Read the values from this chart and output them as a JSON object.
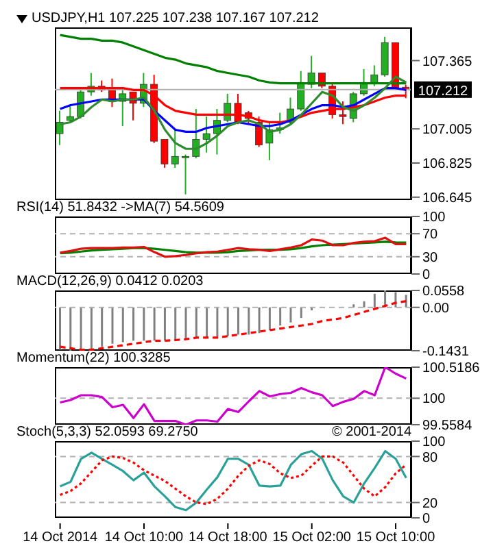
{
  "chart_data": [
    {
      "type": "candlestick",
      "title": "USDJPY,H1  107.225 107.238 107.167 107.212",
      "categories": [
        null,
        null,
        null,
        null,
        null,
        null,
        null,
        null,
        null,
        null,
        null,
        null,
        null,
        null,
        null,
        null,
        null,
        null,
        null,
        null,
        null,
        null,
        null,
        null,
        null,
        null,
        null,
        null,
        null,
        null,
        null,
        null,
        null,
        null
      ],
      "ohlc": [
        [
          106.98,
          107.1,
          106.92,
          107.04
        ],
        [
          107.05,
          107.13,
          107.04,
          107.07
        ],
        [
          107.07,
          107.21,
          107.06,
          107.2
        ],
        [
          107.2,
          107.3,
          107.18,
          107.23
        ],
        [
          107.23,
          107.26,
          107.2,
          107.21
        ],
        [
          107.22,
          107.27,
          107.12,
          107.15
        ],
        [
          107.15,
          107.21,
          107.02,
          107.19
        ],
        [
          107.2,
          107.2,
          107.05,
          107.14
        ],
        [
          107.14,
          107.3,
          107.12,
          107.24
        ],
        [
          107.24,
          107.29,
          106.93,
          106.94
        ],
        [
          106.95,
          106.95,
          106.8,
          106.82
        ],
        [
          106.82,
          107.0,
          106.8,
          106.86
        ],
        [
          106.86,
          106.87,
          106.66,
          106.86
        ],
        [
          106.86,
          107.11,
          106.85,
          106.95
        ],
        [
          106.95,
          107.07,
          106.88,
          106.98
        ],
        [
          106.98,
          107.11,
          106.87,
          107.05
        ],
        [
          107.05,
          107.19,
          107.04,
          107.14
        ],
        [
          107.14,
          107.19,
          107.03,
          107.04
        ],
        [
          107.09,
          107.1,
          107.03,
          107.06
        ],
        [
          107.04,
          107.07,
          106.91,
          106.92
        ],
        [
          106.93,
          107.04,
          106.84,
          107.0
        ],
        [
          107.0,
          107.09,
          106.98,
          107.01
        ],
        [
          107.04,
          107.17,
          107.03,
          107.11
        ],
        [
          107.11,
          107.31,
          107.1,
          107.25
        ],
        [
          107.24,
          107.39,
          107.22,
          107.3
        ],
        [
          107.3,
          107.3,
          107.22,
          107.23
        ],
        [
          107.23,
          107.24,
          107.06,
          107.08
        ],
        [
          107.08,
          107.15,
          107.03,
          107.07
        ],
        [
          107.06,
          107.2,
          107.04,
          107.19
        ],
        [
          107.19,
          107.32,
          107.18,
          107.25
        ],
        [
          107.25,
          107.34,
          107.23,
          107.29
        ],
        [
          107.29,
          107.49,
          107.28,
          107.46
        ],
        [
          107.46,
          107.46,
          107.21,
          107.22
        ],
        [
          107.225,
          107.238,
          107.167,
          107.212
        ]
      ],
      "colors": [
        "#22b022",
        "#22b022",
        "#22b022",
        "#22b022",
        "#ff0000",
        "#ff0000",
        "#22b022",
        "#ff0000",
        "#22b022",
        "#ff0000",
        "#ff0000",
        "#22b022",
        "#22b022",
        "#22b022",
        "#22b022",
        "#22b022",
        "#22b022",
        "#ff0000",
        "#ff0000",
        "#ff0000",
        "#22b022",
        "#22b022",
        "#22b022",
        "#22b022",
        "#22b022",
        "#ff0000",
        "#ff0000",
        "#ff0000",
        "#22b022",
        "#22b022",
        "#22b022",
        "#22b022",
        "#ff0000",
        "#ff0000"
      ],
      "series": [
        {
          "type": "line",
          "color": "#008000",
          "values": [
            107.5,
            107.49,
            107.48,
            107.48,
            107.47,
            107.47,
            107.46,
            107.44,
            107.42,
            107.4,
            107.38,
            107.37,
            107.35,
            107.34,
            107.33,
            107.31,
            107.3,
            107.29,
            107.28,
            107.26,
            107.25,
            107.245,
            107.245,
            107.245,
            107.245,
            107.245,
            107.245,
            107.245,
            107.245,
            107.245,
            107.245,
            107.245,
            107.245,
            107.245
          ]
        },
        {
          "type": "line",
          "color": "#ff0000",
          "values": [
            107.22,
            107.22,
            107.22,
            107.22,
            107.22,
            107.22,
            107.22,
            107.21,
            107.21,
            107.18,
            107.13,
            107.1,
            107.09,
            107.08,
            107.08,
            107.08,
            107.08,
            107.08,
            107.07,
            107.05,
            107.04,
            107.04,
            107.05,
            107.07,
            107.09,
            107.1,
            107.11,
            107.11,
            107.12,
            107.13,
            107.15,
            107.17,
            107.18,
            107.18
          ]
        },
        {
          "type": "line",
          "color": "#0000ff",
          "values": [
            107.11,
            107.13,
            107.14,
            107.15,
            107.16,
            107.16,
            107.16,
            107.16,
            107.16,
            107.1,
            107.05,
            107.0,
            106.99,
            106.99,
            107.01,
            107.02,
            107.03,
            107.04,
            107.03,
            107.02,
            107.02,
            107.03,
            107.05,
            107.08,
            107.11,
            107.13,
            107.13,
            107.12,
            107.13,
            107.16,
            107.19,
            107.22,
            107.22,
            107.21
          ]
        },
        {
          "type": "line",
          "color": "#2e8b2e",
          "values": [
            107.03,
            107.04,
            107.07,
            107.12,
            107.16,
            107.15,
            107.16,
            107.16,
            107.17,
            107.1,
            107.0,
            106.93,
            106.9,
            106.9,
            106.93,
            106.97,
            107.02,
            107.04,
            107.05,
            107.03,
            106.99,
            107.0,
            107.03,
            107.08,
            107.14,
            107.2,
            107.18,
            107.12,
            107.1,
            107.13,
            107.17,
            107.22,
            107.28,
            107.25
          ]
        }
      ],
      "ylim": [
        106.63,
        107.54
      ],
      "yticks": [
        107.365,
        107.005,
        106.825,
        106.645
      ],
      "ref_lines": [
        {
          "axis": "y",
          "value": 107.212,
          "label": "107.212",
          "color": "#b0b0b0"
        }
      ],
      "tick_labels": "y"
    },
    {
      "type": "line",
      "title": "RSI(14) 51.8432  ->MA(7) 54.5609",
      "categories": [
        null,
        null,
        null,
        null,
        null,
        null,
        null,
        null,
        null,
        null,
        null,
        null,
        null,
        null,
        null,
        null,
        null,
        null,
        null,
        null,
        null,
        null,
        null,
        null,
        null,
        null,
        null,
        null,
        null,
        null,
        null,
        null,
        null,
        null
      ],
      "series": [
        {
          "color": "#008000",
          "values": [
            36,
            37,
            39,
            41,
            42,
            43,
            44,
            45,
            45,
            44,
            42,
            40,
            38,
            37,
            37,
            37,
            38,
            40,
            41,
            42,
            42,
            42,
            43,
            45,
            48,
            50,
            51,
            52,
            53,
            54,
            55,
            56,
            55,
            54.5609
          ]
        },
        {
          "color": "#e01010",
          "values": [
            37,
            40,
            44,
            45,
            45,
            45,
            46,
            46,
            47,
            38,
            30,
            31,
            33,
            36,
            38,
            39,
            42,
            45,
            43,
            42,
            40,
            43,
            46,
            50,
            60,
            58,
            50,
            50,
            54,
            56,
            57,
            63,
            52,
            51.8432
          ]
        }
      ],
      "ylim": [
        0,
        100
      ],
      "yticks": [
        100,
        70,
        30,
        0
      ],
      "ref_lines": [
        {
          "axis": "y",
          "value": 70,
          "color": "#b0b0b0",
          "line_style": "dashed"
        },
        {
          "axis": "y",
          "value": 30,
          "color": "#b0b0b0",
          "line_style": "dashed"
        }
      ],
      "tick_labels": "y"
    },
    {
      "type": "bar",
      "title": "MACD(12,26,9) 0.0412 0.0203",
      "categories": [
        null,
        null,
        null,
        null,
        null,
        null,
        null,
        null,
        null,
        null,
        null,
        null,
        null,
        null,
        null,
        null,
        null,
        null,
        null,
        null,
        null,
        null,
        null,
        null,
        null,
        null,
        null,
        null,
        null,
        null,
        null,
        null,
        null,
        null
      ],
      "series": [
        {
          "color": "#808080",
          "values": [
            -0.14,
            -0.1431,
            -0.14,
            -0.138,
            -0.13,
            -0.12,
            -0.115,
            -0.11,
            -0.11,
            -0.11,
            -0.11,
            -0.11,
            -0.105,
            -0.1,
            -0.1,
            -0.1,
            -0.095,
            -0.09,
            -0.09,
            -0.085,
            -0.075,
            -0.06,
            -0.05,
            -0.035,
            -0.01,
            null,
            null,
            null,
            0.01,
            0.02,
            0.045,
            0.0558,
            0.05,
            0.0412
          ]
        },
        {
          "type": "line",
          "color": "#ff0000",
          "line_style": "dashed",
          "values": [
            -0.13,
            -0.135,
            -0.14,
            -0.14,
            -0.135,
            -0.13,
            -0.125,
            -0.12,
            -0.115,
            -0.11,
            -0.11,
            -0.108,
            -0.105,
            -0.1,
            -0.1,
            -0.1,
            -0.095,
            -0.09,
            -0.085,
            -0.08,
            -0.075,
            -0.07,
            -0.065,
            -0.06,
            -0.055,
            -0.045,
            -0.04,
            -0.035,
            -0.025,
            -0.015,
            -0.005,
            0.005,
            0.015,
            0.0203
          ]
        }
      ],
      "ylim": [
        -0.1431,
        0.0558
      ],
      "yticks": [
        0.0558,
        {
          "value": 0,
          "label": "0.00"
        },
        -0.1431
      ],
      "ref_lines": [
        {
          "axis": "y",
          "value": 0,
          "color": "#b0b0b0",
          "line_style": "dashed"
        }
      ],
      "tick_labels": "y"
    },
    {
      "type": "line",
      "title": "Momentum(22) 100.3285",
      "categories": [
        null,
        null,
        null,
        null,
        null,
        null,
        null,
        null,
        null,
        null,
        null,
        null,
        null,
        null,
        null,
        null,
        null,
        null,
        null,
        null,
        null,
        null,
        null,
        null,
        null,
        null,
        null,
        null,
        null,
        null,
        null,
        null,
        null,
        null
      ],
      "series": [
        {
          "color": "#cc00cc",
          "values": [
            99.93,
            99.97,
            100.05,
            100.05,
            100.02,
            99.85,
            99.89,
            99.67,
            99.9,
            99.62,
            99.62,
            99.62,
            99.5584,
            99.63,
            99.63,
            99.61,
            99.82,
            99.77,
            99.95,
            100.12,
            100.03,
            100.07,
            100.09,
            100.17,
            100.1,
            100.05,
            99.87,
            99.94,
            99.99,
            100.12,
            100.05,
            100.5186,
            100.41,
            100.3285
          ]
        }
      ],
      "ylim": [
        99.5584,
        100.5186
      ],
      "yticks": [
        100.5186,
        100,
        99.5584
      ],
      "ref_lines": [
        {
          "axis": "y",
          "value": 100,
          "color": "#b0b0b0",
          "line_style": "dashed"
        }
      ],
      "tick_labels": "y"
    },
    {
      "type": "line",
      "title": "Stoch(5,3,3) 52.0593 69.2750",
      "annotations": [
        "© 2001-2014"
      ],
      "categories": [
        "14 Oct 2014",
        null,
        null,
        null,
        null,
        null,
        null,
        null,
        "14 Oct 10:00",
        null,
        null,
        null,
        null,
        null,
        null,
        null,
        "14 Oct 18:00",
        null,
        null,
        null,
        null,
        null,
        null,
        null,
        "15 Oct 02:00",
        null,
        null,
        null,
        null,
        null,
        null,
        null,
        "15 Oct 10:00",
        null
      ],
      "series": [
        {
          "color": "#2aa198",
          "values": [
            41,
            47,
            77,
            85,
            77,
            69,
            61,
            49,
            59,
            41,
            28,
            14,
            10,
            20,
            37,
            53,
            77,
            77,
            69,
            42,
            41,
            42,
            69,
            83,
            87,
            77,
            49,
            28,
            20,
            45,
            65,
            87,
            77,
            52.0593
          ]
        },
        {
          "color": "#ff0000",
          "line_style": "dotted",
          "values": [
            30,
            35,
            45,
            60,
            75,
            80,
            78,
            72,
            62,
            55,
            48,
            38,
            28,
            20,
            18,
            25,
            38,
            55,
            68,
            75,
            70,
            58,
            52,
            55,
            68,
            80,
            80,
            72,
            55,
            38,
            28,
            40,
            58,
            69.275
          ]
        }
      ],
      "ylim": [
        0,
        100
      ],
      "yticks": [
        100,
        80,
        20,
        0
      ],
      "ref_lines": [
        {
          "axis": "y",
          "value": 80,
          "color": "#b0b0b0",
          "line_style": "dashed"
        },
        {
          "axis": "y",
          "value": 20,
          "color": "#b0b0b0",
          "line_style": "dashed"
        }
      ]
    }
  ]
}
